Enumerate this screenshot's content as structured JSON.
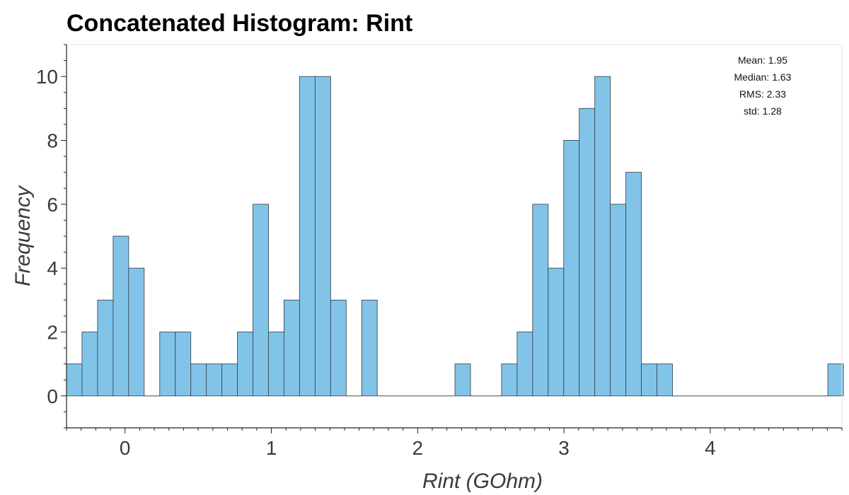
{
  "chart_data": {
    "type": "bar",
    "title": "Concatenated Histogram: Rint",
    "xlabel": "Rint (GOhm)",
    "ylabel": "Frequency",
    "xlim": [
      -0.4,
      4.9
    ],
    "ylim": [
      -1,
      11
    ],
    "xticks": [
      0,
      1,
      2,
      3,
      4
    ],
    "yticks": [
      0,
      2,
      4,
      6,
      8,
      10
    ],
    "bin_start": -0.4,
    "bin_width": 0.1062,
    "counts": [
      1,
      2,
      3,
      5,
      4,
      0,
      2,
      2,
      1,
      1,
      1,
      2,
      6,
      2,
      3,
      10,
      10,
      3,
      0,
      3,
      0,
      0,
      0,
      0,
      0,
      1,
      0,
      0,
      1,
      2,
      6,
      4,
      8,
      9,
      10,
      6,
      7,
      1,
      1,
      0,
      0,
      0,
      0,
      0,
      0,
      0,
      0,
      0,
      0,
      1
    ],
    "bar_color": "#82c4e8",
    "edge_color": "#3a4a55",
    "stats": [
      {
        "label": "Mean",
        "value": "1.95"
      },
      {
        "label": "Median",
        "value": "1.63"
      },
      {
        "label": "RMS",
        "value": "2.33"
      },
      {
        "label": "std",
        "value": "1.28"
      }
    ],
    "grid": false
  }
}
